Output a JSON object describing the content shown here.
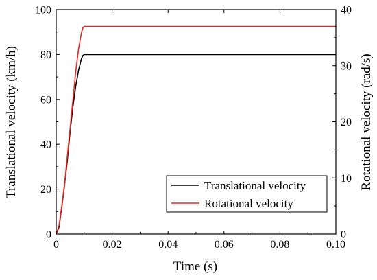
{
  "chart_data": {
    "type": "line",
    "xlabel": "Time (s)",
    "ylabel_left": "Translational velocity (km/h)",
    "ylabel_right": "Rotational velocity (rad/s)",
    "xlim": [
      0,
      0.1
    ],
    "ylim_left": [
      0,
      100
    ],
    "ylim_right": [
      0,
      40
    ],
    "x_ticks": [
      0,
      0.02,
      0.04,
      0.06,
      0.08,
      0.1
    ],
    "x_tick_labels": [
      "0",
      "0.02",
      "0.04",
      "0.06",
      "0.08",
      "0.10"
    ],
    "y_ticks_left": [
      0,
      20,
      40,
      60,
      80,
      100
    ],
    "y_tick_labels_left": [
      "0",
      "20",
      "40",
      "60",
      "80",
      "100"
    ],
    "y_ticks_right": [
      0,
      10,
      20,
      30,
      40
    ],
    "y_tick_labels_right": [
      "0",
      "10",
      "20",
      "30",
      "40"
    ],
    "grid": false,
    "legend_position": "bottom-right",
    "series": [
      {
        "name": "Translational velocity",
        "axis": "left",
        "color": "#000000",
        "x": [
          0,
          0.001,
          0.002,
          0.003,
          0.004,
          0.005,
          0.006,
          0.007,
          0.008,
          0.009,
          0.0095,
          0.01,
          0.011,
          0.1
        ],
        "y": [
          0,
          3,
          12,
          22,
          33,
          46,
          57,
          66,
          73,
          78,
          79.5,
          80,
          80,
          80
        ]
      },
      {
        "name": "Rotational velocity",
        "axis": "right",
        "color": "#e8261f",
        "x": [
          0,
          0.001,
          0.002,
          0.003,
          0.004,
          0.005,
          0.006,
          0.007,
          0.008,
          0.009,
          0.0095,
          0.01,
          0.011,
          0.1
        ],
        "y": [
          0,
          1.5,
          5,
          9,
          14,
          19,
          24,
          29,
          33,
          35.8,
          36.7,
          37,
          37,
          37
        ]
      }
    ]
  }
}
